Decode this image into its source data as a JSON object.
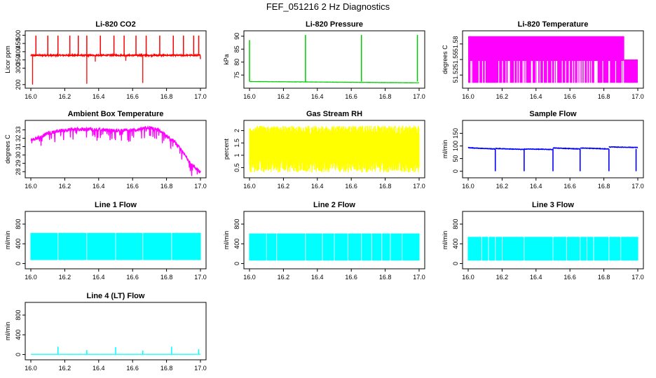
{
  "page": {
    "title": "FEF_051216  2 Hz Diagnostics"
  },
  "chart_data": [
    {
      "type": "line",
      "title": "Li-820 CO2",
      "xlabel": "",
      "ylabel": "Licor ppm",
      "xlim": [
        16.0,
        17.0
      ],
      "ylim": [
        195,
        510
      ],
      "yticks": [
        200,
        300,
        350,
        400,
        450,
        500
      ],
      "xticks": [
        "16.0",
        "16.2",
        "16.4",
        "16.6",
        "16.8",
        "17.0"
      ],
      "color": "#ff0000",
      "pattern": "spiky",
      "base": 378,
      "noise": 4,
      "spikes_up": [
        16.03,
        16.1,
        16.16,
        16.23,
        16.28,
        16.33,
        16.41,
        16.49,
        16.55,
        16.62,
        16.68,
        16.76,
        16.84,
        16.9,
        16.96,
        16.99
      ],
      "spikes_up_to": 498,
      "spikes_down": [
        [
          16.01,
          200
        ],
        [
          16.33,
          205
        ],
        [
          16.66,
          210
        ],
        [
          16.38,
          340
        ],
        [
          16.56,
          345
        ]
      ],
      "end_value": 355
    },
    {
      "type": "line",
      "title": "Li-820 Pressure",
      "xlabel": "",
      "ylabel": "kPa",
      "xlim": [
        16.0,
        17.0
      ],
      "ylim": [
        71,
        91
      ],
      "yticks": [
        75,
        80,
        85,
        90
      ],
      "xticks": [
        "16.0",
        "16.2",
        "16.4",
        "16.6",
        "16.8",
        "17.0"
      ],
      "color": "#00cc00",
      "pattern": "flat_spikes",
      "series_start": 72.5,
      "series_end": 72.0,
      "noise": 0.05,
      "spikes": [
        [
          16.0,
          88.5
        ],
        [
          16.33,
          90.5
        ],
        [
          16.66,
          90.5
        ],
        [
          16.99,
          90.5
        ]
      ]
    },
    {
      "type": "line",
      "title": "Li-820 Temperature",
      "xlabel": "",
      "ylabel": "degrees C",
      "xlim": [
        16.0,
        17.0
      ],
      "ylim": [
        51.5,
        51.6
      ],
      "yticks": [
        51.52,
        51.55,
        51.58
      ],
      "xticks": [
        "16.0",
        "16.2",
        "16.4",
        "16.6",
        "16.8",
        "17.0"
      ],
      "color": "#ff00ff",
      "pattern": "quantized",
      "level_high": 51.595,
      "level_low": 51.505,
      "level_mid": 51.55,
      "drop_x": 16.92
    },
    {
      "type": "line",
      "title": "Ambient Box Temperature",
      "xlabel": "",
      "ylabel": "degrees C",
      "xlim": [
        16.0,
        17.0
      ],
      "ylim": [
        27.6,
        33.8
      ],
      "yticks": [
        28,
        29,
        30,
        31,
        32,
        33
      ],
      "xticks": [
        "16.0",
        "16.2",
        "16.4",
        "16.6",
        "16.8",
        "17.0"
      ],
      "color": "#ff00ff",
      "pattern": "curve",
      "curve": [
        [
          16.0,
          31.8
        ],
        [
          16.05,
          32.1
        ],
        [
          16.1,
          32.6
        ],
        [
          16.2,
          33.0
        ],
        [
          16.35,
          33.1
        ],
        [
          16.5,
          32.9
        ],
        [
          16.62,
          33.0
        ],
        [
          16.7,
          33.3
        ],
        [
          16.75,
          33.0
        ],
        [
          16.8,
          32.3
        ],
        [
          16.85,
          31.5
        ],
        [
          16.9,
          30.2
        ],
        [
          16.95,
          28.8
        ],
        [
          17.0,
          28.0
        ]
      ],
      "noise": 0.2,
      "dips": 0.9
    },
    {
      "type": "line",
      "title": "Gas Stream RH",
      "xlabel": "",
      "ylabel": "percent",
      "xlim": [
        16.0,
        17.0
      ],
      "ylim": [
        0.2,
        2.3
      ],
      "yticks": [
        0.5,
        1.0,
        1.5,
        2.0
      ],
      "xticks": [
        "16.0",
        "16.2",
        "16.4",
        "16.6",
        "16.8",
        "17.0"
      ],
      "color": "#ffff00",
      "pattern": "band",
      "low": 0.3,
      "high": 2.2
    },
    {
      "type": "line",
      "title": "Sample Flow",
      "xlabel": "",
      "ylabel": "ml/min",
      "xlim": [
        16.0,
        17.0
      ],
      "ylim": [
        -15,
        190
      ],
      "yticks": [
        0,
        50,
        100,
        150
      ],
      "xticks": [
        "16.0",
        "16.2",
        "16.4",
        "16.6",
        "16.8",
        "17.0"
      ],
      "color": "#0000ff",
      "pattern": "steps",
      "segments": [
        [
          16.0,
          16.16,
          93,
          88
        ],
        [
          16.16,
          16.33,
          90,
          86
        ],
        [
          16.33,
          16.5,
          88,
          86
        ],
        [
          16.5,
          16.66,
          92,
          88
        ],
        [
          16.66,
          16.83,
          92,
          88
        ],
        [
          16.83,
          17.0,
          96,
          94
        ]
      ],
      "dips": [
        [
          16.16,
          0
        ],
        [
          16.33,
          0
        ],
        [
          16.5,
          0
        ],
        [
          16.66,
          0
        ],
        [
          16.83,
          0
        ],
        [
          16.99,
          0
        ]
      ]
    },
    {
      "type": "line",
      "title": "Line 1 Flow",
      "xlabel": "",
      "ylabel": "ml/min",
      "xlim": [
        16.0,
        17.0
      ],
      "ylim": [
        -50,
        1000
      ],
      "yticks": [
        0,
        400,
        800
      ],
      "xticks": [
        "16.0",
        "16.2",
        "16.4",
        "16.6",
        "16.8",
        "17.0"
      ],
      "color": "#00ffff",
      "pattern": "band",
      "low": 70,
      "high": 620,
      "gaps": [
        16.16,
        16.33,
        16.5,
        16.66,
        16.83
      ]
    },
    {
      "type": "line",
      "title": "Line 2 Flow",
      "xlabel": "",
      "ylabel": "ml/min",
      "xlim": [
        16.0,
        17.0
      ],
      "ylim": [
        -50,
        1000
      ],
      "yticks": [
        0,
        400,
        800
      ],
      "xticks": [
        "16.0",
        "16.2",
        "16.4",
        "16.6",
        "16.8",
        "17.0"
      ],
      "color": "#00ffff",
      "pattern": "band",
      "low": 60,
      "high": 610,
      "gaps": [
        16.1,
        16.16,
        16.33,
        16.43,
        16.5,
        16.58,
        16.66,
        16.72,
        16.78,
        16.83,
        16.9
      ]
    },
    {
      "type": "line",
      "title": "Line 3 Flow",
      "xlabel": "",
      "ylabel": "ml/min",
      "xlim": [
        16.0,
        17.0
      ],
      "ylim": [
        -50,
        1000
      ],
      "yticks": [
        0,
        400,
        800
      ],
      "xticks": [
        "16.0",
        "16.2",
        "16.4",
        "16.6",
        "16.8",
        "17.0"
      ],
      "color": "#00ffff",
      "pattern": "band",
      "low": 60,
      "high": 540,
      "gaps": [
        16.08,
        16.12,
        16.16,
        16.2,
        16.33,
        16.5,
        16.58,
        16.66,
        16.7,
        16.74,
        16.83,
        16.9
      ]
    },
    {
      "type": "line",
      "title": "Line 4 (LT) Flow",
      "xlabel": "",
      "ylabel": "ml/min",
      "xlim": [
        16.0,
        17.0
      ],
      "ylim": [
        -50,
        1000
      ],
      "yticks": [
        0,
        400,
        800
      ],
      "xticks": [
        "16.0",
        "16.2",
        "16.4",
        "16.6",
        "16.8",
        "17.0"
      ],
      "color": "#00ffff",
      "pattern": "flat_spikes",
      "series_start": 5,
      "series_end": 5,
      "noise": 1,
      "spikes": [
        [
          16.16,
          160
        ],
        [
          16.33,
          90
        ],
        [
          16.5,
          150
        ],
        [
          16.66,
          80
        ],
        [
          16.83,
          160
        ],
        [
          16.99,
          110
        ]
      ]
    }
  ]
}
